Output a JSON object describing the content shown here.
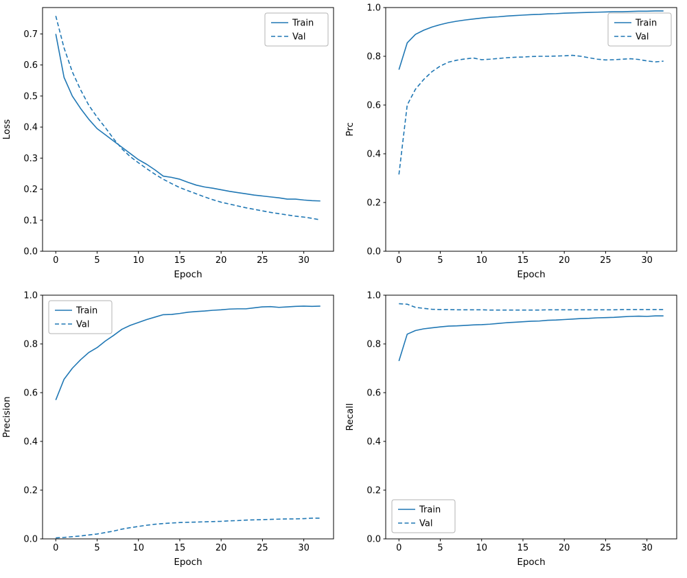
{
  "figure": {
    "background": "#ffffff",
    "line_color": "#1f77b4",
    "spine_color": "#000000",
    "legend_border_color": "#b3b3b3"
  },
  "chart_data": [
    {
      "id": "loss",
      "type": "line",
      "title": "",
      "xlabel": "Epoch",
      "ylabel": "Loss",
      "xlim": [
        -1.6,
        33.6
      ],
      "ylim": [
        0.0,
        0.785
      ],
      "xticks": [
        0,
        5,
        10,
        15,
        20,
        25,
        30
      ],
      "yticks": [
        0.0,
        0.1,
        0.2,
        0.3,
        0.4,
        0.5,
        0.6,
        0.7
      ],
      "grid": false,
      "legend": {
        "position": "upper-right",
        "entries": [
          "Train",
          "Val"
        ]
      },
      "x": [
        0,
        1,
        2,
        3,
        4,
        5,
        6,
        7,
        8,
        9,
        10,
        11,
        12,
        13,
        14,
        15,
        16,
        17,
        18,
        19,
        20,
        21,
        22,
        23,
        24,
        25,
        26,
        27,
        28,
        29,
        30,
        31,
        32
      ],
      "series": [
        {
          "name": "Train",
          "style": "solid",
          "values": [
            0.7,
            0.56,
            0.5,
            0.46,
            0.425,
            0.395,
            0.375,
            0.355,
            0.335,
            0.315,
            0.295,
            0.28,
            0.262,
            0.242,
            0.238,
            0.232,
            0.222,
            0.213,
            0.207,
            0.203,
            0.198,
            0.193,
            0.189,
            0.185,
            0.181,
            0.178,
            0.175,
            0.172,
            0.168,
            0.168,
            0.165,
            0.163,
            0.162
          ]
        },
        {
          "name": "Val",
          "style": "dashed",
          "values": [
            0.758,
            0.655,
            0.578,
            0.52,
            0.47,
            0.432,
            0.398,
            0.362,
            0.33,
            0.305,
            0.285,
            0.266,
            0.248,
            0.232,
            0.218,
            0.205,
            0.195,
            0.185,
            0.175,
            0.166,
            0.158,
            0.152,
            0.146,
            0.14,
            0.135,
            0.13,
            0.125,
            0.121,
            0.117,
            0.113,
            0.11,
            0.106,
            0.101
          ]
        }
      ]
    },
    {
      "id": "prc",
      "type": "line",
      "title": "",
      "xlabel": "Epoch",
      "ylabel": "Prc",
      "xlim": [
        -1.6,
        33.6
      ],
      "ylim": [
        0.0,
        1.0
      ],
      "xticks": [
        0,
        5,
        10,
        15,
        20,
        25,
        30
      ],
      "yticks": [
        0.0,
        0.2,
        0.4,
        0.6,
        0.8,
        1.0
      ],
      "grid": false,
      "legend": {
        "position": "upper-right",
        "entries": [
          "Train",
          "Val"
        ]
      },
      "x": [
        0,
        1,
        2,
        3,
        4,
        5,
        6,
        7,
        8,
        9,
        10,
        11,
        12,
        13,
        14,
        15,
        16,
        17,
        18,
        19,
        20,
        21,
        22,
        23,
        24,
        25,
        26,
        27,
        28,
        29,
        30,
        31,
        32
      ],
      "series": [
        {
          "name": "Train",
          "style": "solid",
          "values": [
            0.745,
            0.855,
            0.89,
            0.907,
            0.92,
            0.93,
            0.938,
            0.944,
            0.949,
            0.953,
            0.957,
            0.96,
            0.962,
            0.965,
            0.967,
            0.969,
            0.971,
            0.972,
            0.974,
            0.975,
            0.977,
            0.978,
            0.979,
            0.98,
            0.981,
            0.982,
            0.983,
            0.983,
            0.984,
            0.985,
            0.985,
            0.986,
            0.986
          ]
        },
        {
          "name": "Val",
          "style": "dashed",
          "values": [
            0.315,
            0.6,
            0.665,
            0.705,
            0.737,
            0.76,
            0.776,
            0.784,
            0.789,
            0.793,
            0.786,
            0.788,
            0.791,
            0.794,
            0.796,
            0.797,
            0.799,
            0.8,
            0.8,
            0.801,
            0.802,
            0.804,
            0.8,
            0.794,
            0.788,
            0.785,
            0.786,
            0.788,
            0.79,
            0.787,
            0.781,
            0.777,
            0.78
          ]
        }
      ]
    },
    {
      "id": "precision",
      "type": "line",
      "title": "",
      "xlabel": "Epoch",
      "ylabel": "Precision",
      "xlim": [
        -1.6,
        33.6
      ],
      "ylim": [
        0.0,
        1.0
      ],
      "xticks": [
        0,
        5,
        10,
        15,
        20,
        25,
        30
      ],
      "yticks": [
        0.0,
        0.2,
        0.4,
        0.6,
        0.8,
        1.0
      ],
      "grid": false,
      "legend": {
        "position": "upper-left",
        "entries": [
          "Train",
          "Val"
        ]
      },
      "x": [
        0,
        1,
        2,
        3,
        4,
        5,
        6,
        7,
        8,
        9,
        10,
        11,
        12,
        13,
        14,
        15,
        16,
        17,
        18,
        19,
        20,
        21,
        22,
        23,
        24,
        25,
        26,
        27,
        28,
        29,
        30,
        31,
        32
      ],
      "series": [
        {
          "name": "Train",
          "style": "solid",
          "values": [
            0.57,
            0.655,
            0.7,
            0.735,
            0.765,
            0.785,
            0.812,
            0.835,
            0.86,
            0.876,
            0.888,
            0.9,
            0.91,
            0.92,
            0.921,
            0.925,
            0.93,
            0.933,
            0.935,
            0.938,
            0.94,
            0.943,
            0.944,
            0.944,
            0.948,
            0.952,
            0.953,
            0.95,
            0.952,
            0.954,
            0.955,
            0.954,
            0.955
          ]
        },
        {
          "name": "Val",
          "style": "dashed",
          "values": [
            0.004,
            0.006,
            0.009,
            0.012,
            0.016,
            0.02,
            0.026,
            0.032,
            0.04,
            0.046,
            0.051,
            0.056,
            0.06,
            0.063,
            0.065,
            0.067,
            0.068,
            0.069,
            0.07,
            0.071,
            0.072,
            0.074,
            0.075,
            0.077,
            0.078,
            0.079,
            0.08,
            0.081,
            0.082,
            0.082,
            0.083,
            0.085,
            0.085
          ]
        }
      ]
    },
    {
      "id": "recall",
      "type": "line",
      "title": "",
      "xlabel": "Epoch",
      "ylabel": "Recall",
      "xlim": [
        -1.6,
        33.6
      ],
      "ylim": [
        0.0,
        1.0
      ],
      "xticks": [
        0,
        5,
        10,
        15,
        20,
        25,
        30
      ],
      "yticks": [
        0.0,
        0.2,
        0.4,
        0.6,
        0.8,
        1.0
      ],
      "grid": false,
      "legend": {
        "position": "lower-left",
        "entries": [
          "Train",
          "Val"
        ]
      },
      "x": [
        0,
        1,
        2,
        3,
        4,
        5,
        6,
        7,
        8,
        9,
        10,
        11,
        12,
        13,
        14,
        15,
        16,
        17,
        18,
        19,
        20,
        21,
        22,
        23,
        24,
        25,
        26,
        27,
        28,
        29,
        30,
        31,
        32
      ],
      "series": [
        {
          "name": "Train",
          "style": "solid",
          "values": [
            0.73,
            0.84,
            0.855,
            0.862,
            0.866,
            0.87,
            0.873,
            0.874,
            0.876,
            0.878,
            0.879,
            0.881,
            0.884,
            0.887,
            0.889,
            0.891,
            0.893,
            0.894,
            0.897,
            0.898,
            0.9,
            0.902,
            0.904,
            0.905,
            0.907,
            0.908,
            0.909,
            0.911,
            0.913,
            0.914,
            0.913,
            0.915,
            0.915
          ]
        },
        {
          "name": "Val",
          "style": "dashed",
          "values": [
            0.965,
            0.963,
            0.95,
            0.946,
            0.942,
            0.941,
            0.941,
            0.94,
            0.94,
            0.94,
            0.94,
            0.939,
            0.939,
            0.939,
            0.939,
            0.939,
            0.939,
            0.939,
            0.94,
            0.94,
            0.94,
            0.94,
            0.94,
            0.94,
            0.94,
            0.94,
            0.94,
            0.941,
            0.941,
            0.941,
            0.941,
            0.941,
            0.941
          ]
        }
      ]
    }
  ]
}
